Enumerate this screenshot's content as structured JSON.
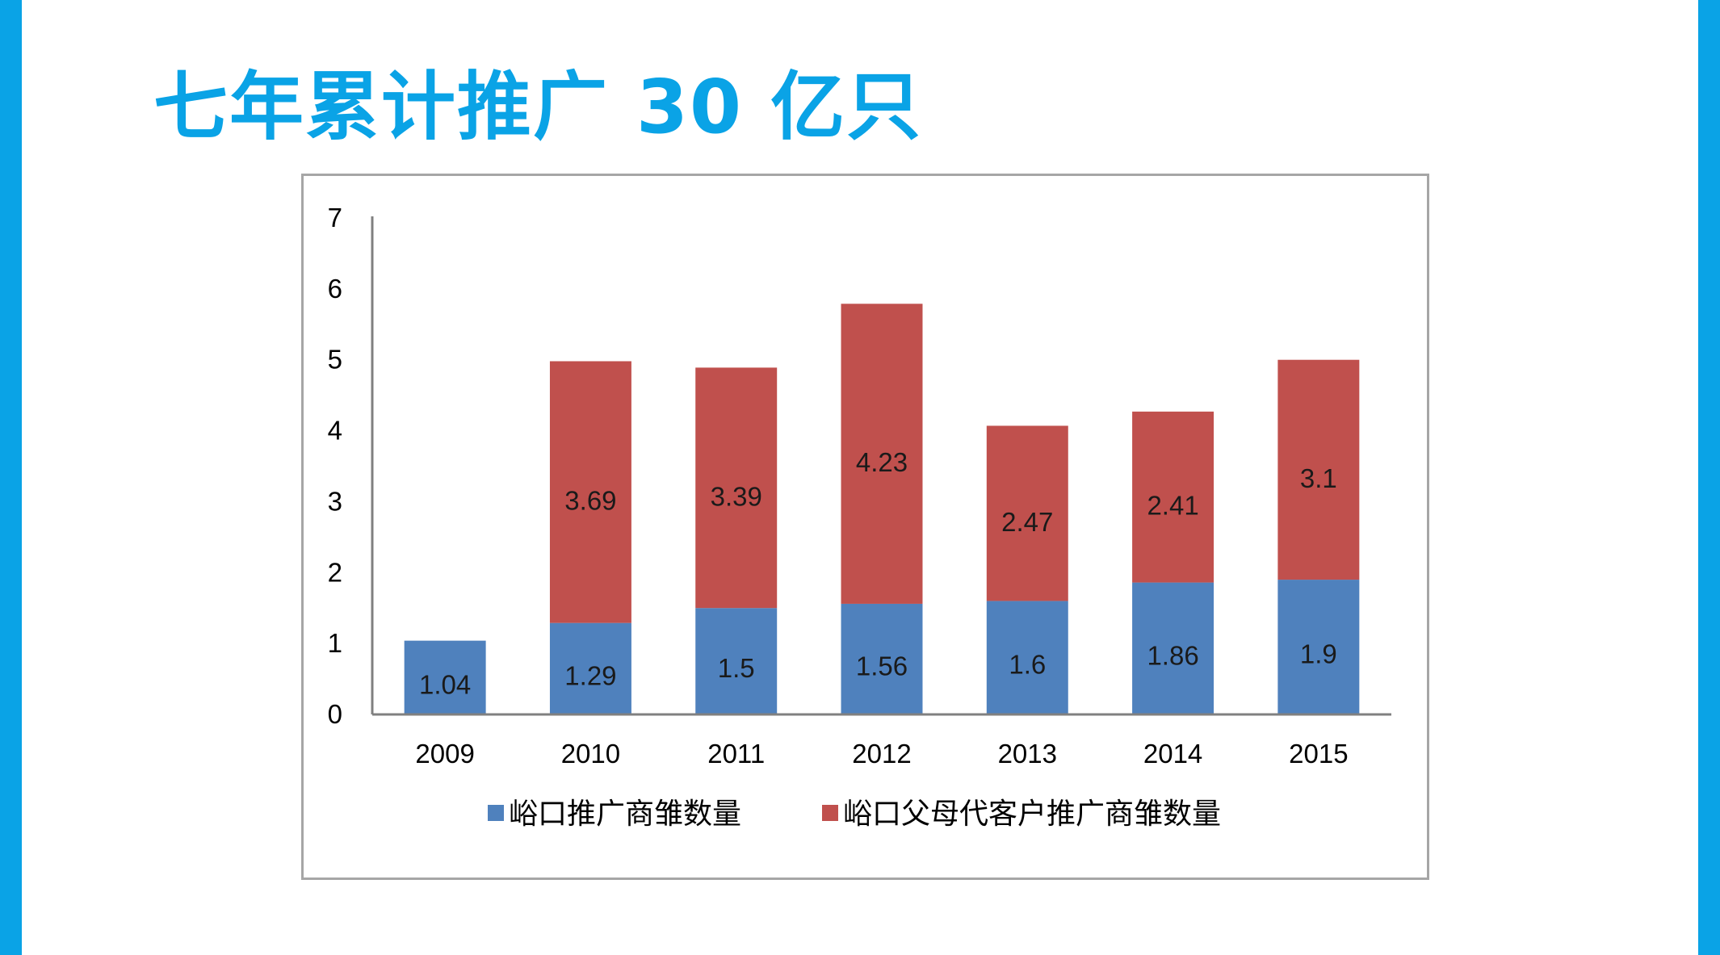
{
  "slide": {
    "title": "七年累计推广 30 亿只",
    "accent_color": "#0aa3e6"
  },
  "chart_data": {
    "type": "bar",
    "stacked": true,
    "categories": [
      "2009",
      "2010",
      "2011",
      "2012",
      "2013",
      "2014",
      "2015"
    ],
    "series": [
      {
        "name": "峪口推广商雏数量",
        "color": "#4f81bd",
        "values": [
          1.04,
          1.29,
          1.5,
          1.56,
          1.6,
          1.86,
          1.9
        ]
      },
      {
        "name": "峪口父母代客户推广商雏数量",
        "color": "#c0504d",
        "values": [
          null,
          3.69,
          3.39,
          4.23,
          2.47,
          2.41,
          3.1
        ]
      }
    ],
    "ylim": [
      0,
      7
    ],
    "yticks": [
      "0",
      "1",
      "2",
      "3",
      "4",
      "5",
      "6",
      "7"
    ],
    "legend_position": "bottom",
    "grid": false
  }
}
